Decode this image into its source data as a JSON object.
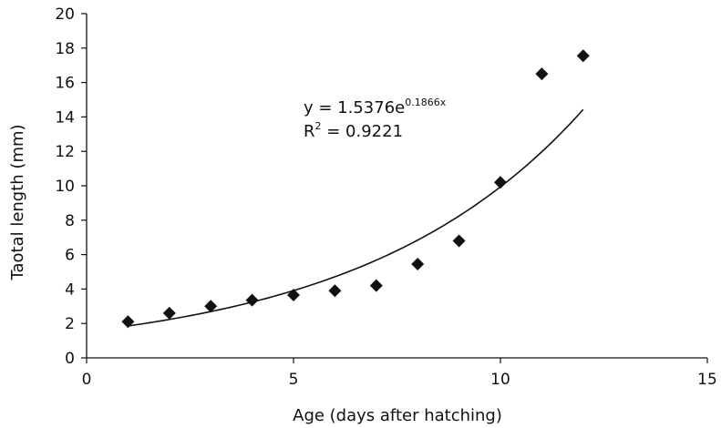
{
  "chart_data": {
    "type": "scatter",
    "xlabel": "Age (days after hatching)",
    "ylabel": "Taotal length (mm)",
    "xlim": [
      0,
      15
    ],
    "ylim": [
      0,
      20
    ],
    "x_ticks": [
      "0",
      "5",
      "10",
      "15"
    ],
    "y_ticks": [
      "0",
      "2",
      "4",
      "6",
      "8",
      "10",
      "12",
      "14",
      "16",
      "18",
      "20"
    ],
    "grid": false,
    "marker": "diamond",
    "marker_color": "#111111",
    "series": [
      {
        "x": [
          1,
          2,
          3,
          4,
          5,
          6,
          7,
          8,
          9,
          10,
          11,
          12
        ],
        "y": [
          2.1,
          2.6,
          3.0,
          3.35,
          3.65,
          3.9,
          4.2,
          5.45,
          6.8,
          10.2,
          16.5,
          17.55
        ]
      }
    ],
    "trendline": {
      "type": "exponential",
      "a": 1.5376,
      "b": 0.1866,
      "x_range": [
        1,
        12
      ],
      "color": "#111111"
    },
    "annotation": {
      "eq_prefix": "y = 1.5376e",
      "eq_exponent": "0.1866x",
      "r2_prefix": "R",
      "r2_sup": "2",
      "r2_value": " = 0.9221"
    }
  }
}
